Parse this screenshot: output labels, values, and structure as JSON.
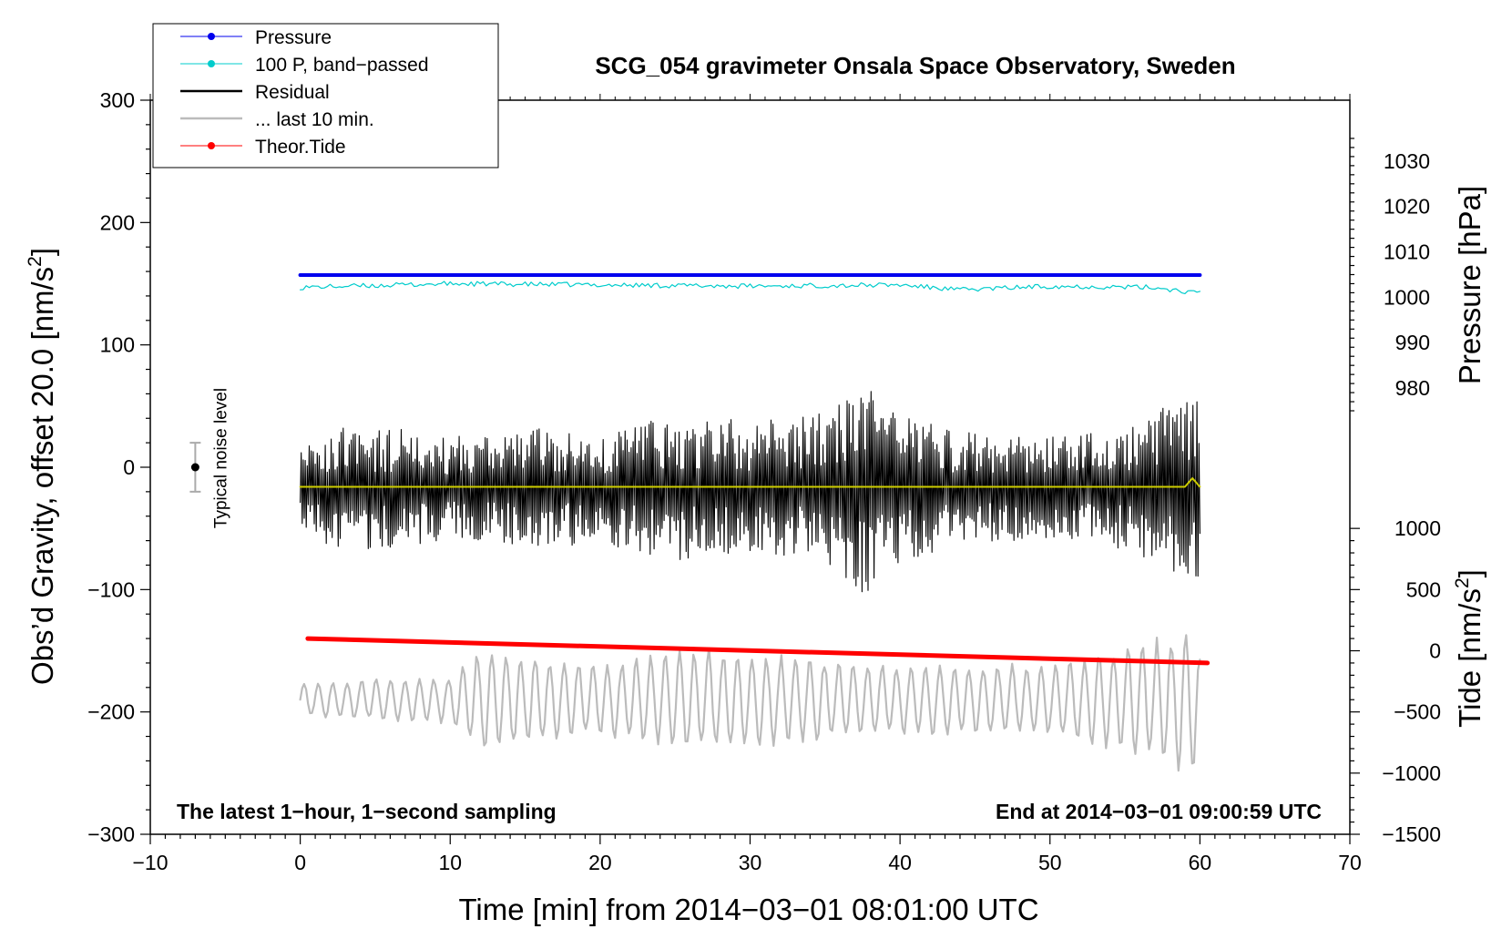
{
  "chart_data": {
    "type": "line",
    "title": "SCG_054 gravimeter Onsala Space Observatory, Sweden",
    "xlabel": "Time [min] from 2014−03−01 08:01:00 UTC",
    "ylabel_left": "Obs’d Gravity, offset 20.0 [nm/s",
    "ylabel_left_sup": "2",
    "ylabel_left_end": "]",
    "ylabel_pressure": "Pressure [hPa]",
    "ylabel_tide": "Tide [nm/s",
    "ylabel_tide_sup": "2",
    "ylabel_tide_end": "]",
    "xlim": [
      -10,
      70
    ],
    "ylim": [
      -300,
      300
    ],
    "x_ticks": [
      -10,
      0,
      10,
      20,
      30,
      40,
      50,
      60,
      70
    ],
    "x_tick_labels": [
      "−10",
      "0",
      "10",
      "20",
      "30",
      "40",
      "50",
      "60",
      "70"
    ],
    "y_ticks": [
      300,
      200,
      100,
      0,
      -100,
      -200,
      -300
    ],
    "y_tick_labels": [
      "300",
      "200",
      "100",
      "0",
      "−100",
      "−200",
      "−300"
    ],
    "pressure_axis": {
      "ticks": [
        1030,
        1020,
        1010,
        1000,
        990,
        980
      ],
      "tick_labels": [
        "1030",
        "1020",
        "1010",
        "1000",
        "990",
        "980"
      ],
      "ref_value": 1000,
      "ref_left_value": 138.9,
      "left_units_per_hPa": 3.71
    },
    "tide_axis": {
      "ticks": [
        1000,
        500,
        0,
        -500,
        -1000,
        -1500
      ],
      "tick_labels": [
        "1000",
        "500",
        "0",
        "−500",
        "−1000",
        "−1500"
      ],
      "ref_value": 0,
      "ref_left_value": -150,
      "left_units_per_unit": 0.1
    },
    "series": [
      {
        "name": "Pressure",
        "color": "#0000ee",
        "axis": "pressure",
        "x": [
          0,
          60
        ],
        "y": [
          1004.9,
          1004.9
        ]
      },
      {
        "name": "100 P, band−passed",
        "color": "#00cccc",
        "axis": "left",
        "x": [
          0,
          10,
          20,
          30,
          40,
          44,
          50,
          57,
          60
        ],
        "y": [
          147,
          150,
          149,
          148,
          149,
          145,
          148,
          147,
          142
        ]
      },
      {
        "name": "Residual",
        "color": "#000000",
        "axis": "left",
        "x": [
          0,
          5,
          10,
          15,
          20,
          25,
          30,
          35,
          37.5,
          40,
          45,
          50,
          55,
          60
        ],
        "y_mean": -17,
        "envelope": [
          45,
          52,
          42,
          50,
          45,
          60,
          55,
          62,
          88,
          60,
          45,
          42,
          50,
          80
        ]
      },
      {
        "name": "Residual mean",
        "color": "#cccc00",
        "axis": "left",
        "x": [
          0,
          30,
          59,
          59.5,
          60
        ],
        "y": [
          -16,
          -16,
          -16,
          -9,
          -16
        ]
      },
      {
        "name": "... last 10 min.",
        "color": "#bbbbbb",
        "axis": "left",
        "x": [
          0,
          10,
          12,
          20,
          26,
          30,
          40,
          50,
          55,
          58,
          59.5,
          60
        ],
        "y_mean": -190,
        "envelope": [
          15,
          20,
          45,
          30,
          45,
          40,
          30,
          30,
          45,
          55,
          70,
          40
        ]
      },
      {
        "name": "Theor.Tide",
        "color": "#ff0000",
        "axis": "tide",
        "x": [
          0.5,
          60.5
        ],
        "y": [
          100,
          -100
        ]
      }
    ],
    "legend_position": "top-left",
    "legend": [
      {
        "label": "Pressure",
        "color": "#0000ee",
        "marker": "dot"
      },
      {
        "label": "100 P, band−passed",
        "color": "#00cccc",
        "marker": "dot"
      },
      {
        "label": "Residual",
        "color": "#000000",
        "marker": "line"
      },
      {
        "label": "... last 10 min.",
        "color": "#bbbbbb",
        "marker": "line"
      },
      {
        "label": "Theor.Tide",
        "color": "#ff0000",
        "marker": "dot"
      }
    ],
    "annotations": {
      "bottom_left": "The latest 1−hour, 1−second sampling",
      "bottom_right": "End at 2014−03−01 09:00:59 UTC",
      "noise_label": "Typical noise level",
      "noise_bar": {
        "x": -7,
        "center": 0,
        "half_range": 20
      }
    }
  }
}
